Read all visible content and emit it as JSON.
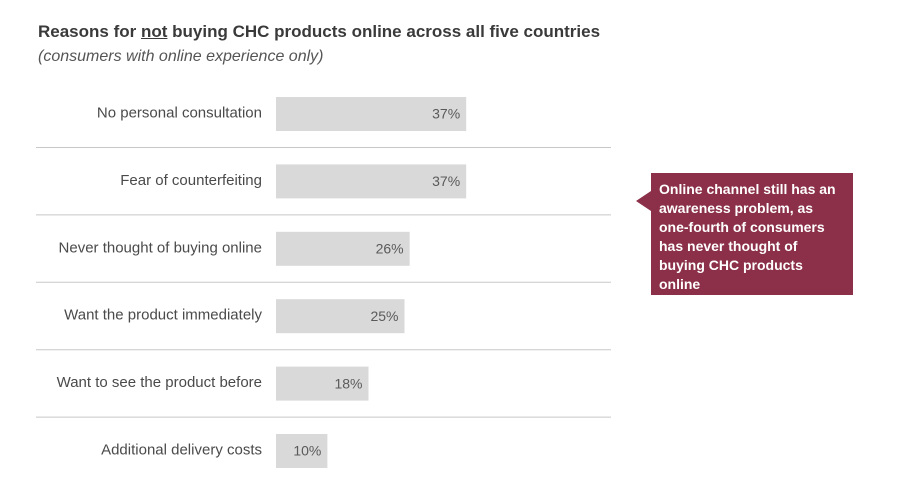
{
  "header": {
    "title_prefix": "Reasons for ",
    "title_emphasis": "not",
    "title_suffix": " buying CHC products online across all five countries",
    "subtitle": "(consumers with online experience only)"
  },
  "callout": {
    "text": "Online channel still has an awareness problem, as one-fourth of consumers has never thought of buying CHC products online"
  },
  "colors": {
    "bar": "#d9d9d9",
    "divider": "#c8c8c8",
    "callout": "#8b3048"
  },
  "chart_data": {
    "type": "bar",
    "orientation": "horizontal",
    "categories": [
      "No personal consultation",
      "Fear of counterfeiting",
      "Never thought of buying online",
      "Want the product immediately",
      "Want to see the product before",
      "Additional delivery costs"
    ],
    "values": [
      37,
      37,
      26,
      25,
      18,
      10
    ],
    "value_labels": [
      "37%",
      "37%",
      "26%",
      "25%",
      "18%",
      "10%"
    ],
    "title": "Reasons for not buying CHC products online across all five countries",
    "subtitle": "(consumers with online experience only)",
    "unit": "%",
    "grid": false
  }
}
